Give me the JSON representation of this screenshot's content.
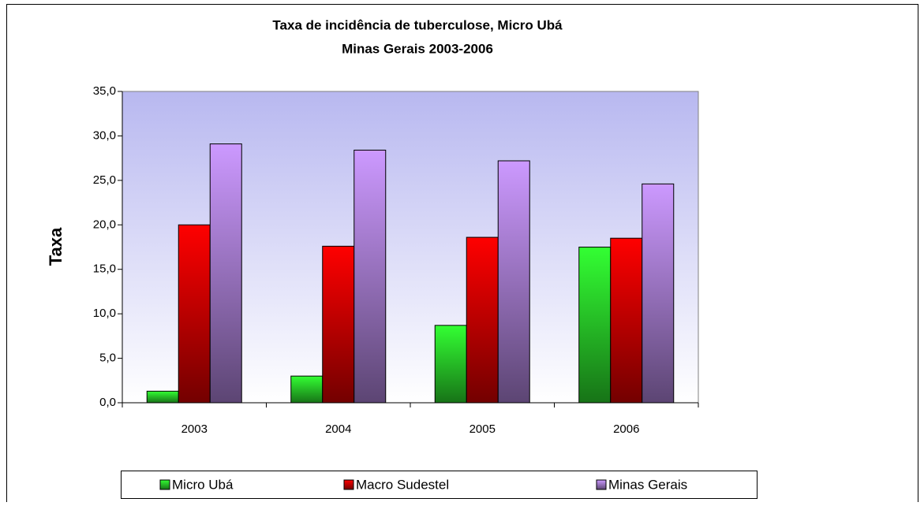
{
  "chart_data": {
    "type": "bar",
    "title": [
      "Taxa de incidência  de tuberculose, Micro Ubá",
      "Minas Gerais 2003-2006"
    ],
    "y_label": "Taxa",
    "categories": [
      "2003",
      "2004",
      "2005",
      "2006"
    ],
    "series": [
      {
        "name": "Micro Ubá",
        "color": "#33ff33",
        "values": [
          1.3,
          3.0,
          8.7,
          17.5
        ]
      },
      {
        "name": "Macro Sudestel",
        "color": "#ff0000",
        "values": [
          20.0,
          17.6,
          18.6,
          18.5
        ]
      },
      {
        "name": "Minas Gerais",
        "color": "#cc99ff",
        "values": [
          29.1,
          28.4,
          27.2,
          24.6
        ]
      }
    ],
    "ylim": [
      0,
      35
    ],
    "yticks": [
      {
        "value": 0,
        "label": "0,0"
      },
      {
        "value": 5,
        "label": "5,0"
      },
      {
        "value": 10,
        "label": "10,0"
      },
      {
        "value": 15,
        "label": "15,0"
      },
      {
        "value": 20,
        "label": "20,0"
      },
      {
        "value": 25,
        "label": "25,0"
      },
      {
        "value": 30,
        "label": "30,0"
      },
      {
        "value": 35,
        "label": "35,0"
      }
    ],
    "legend": "bottom"
  }
}
